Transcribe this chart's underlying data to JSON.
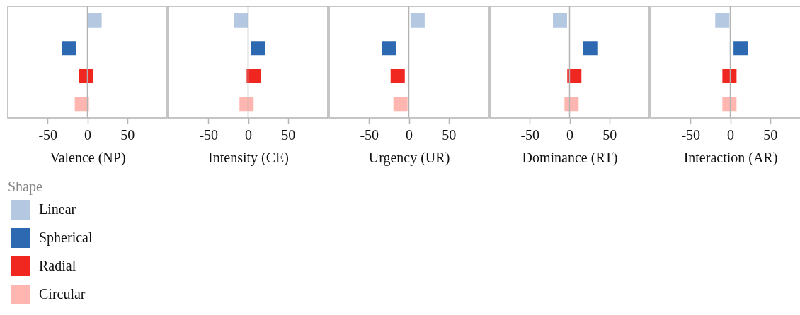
{
  "chart_data": [
    {
      "type": "scatter",
      "orientation": "horizontal",
      "xlabel": "Valence (NP)",
      "legend_title": "Shape",
      "legend": "bottom left",
      "marker": "square",
      "tick_labels": "x",
      "categories": [
        null,
        null,
        null,
        null
      ],
      "xlim": [
        -100,
        100
      ],
      "xticks": [
        -50,
        0,
        50
      ],
      "ref_lines": [
        {
          "axis": "x",
          "value": 0
        }
      ],
      "series": [
        {
          "name": "Linear",
          "color": "#b5c8e2",
          "values": [
            9,
            null,
            null,
            null
          ]
        },
        {
          "name": "Spherical",
          "color": "#2c69b0",
          "values": [
            null,
            -23,
            null,
            null
          ]
        },
        {
          "name": "Radial",
          "color": "#f02720",
          "values": [
            null,
            null,
            -1.5,
            null
          ]
        },
        {
          "name": "Circular",
          "color": "#ffb6b0",
          "values": [
            null,
            null,
            null,
            -7
          ]
        }
      ]
    },
    {
      "type": "scatter",
      "orientation": "horizontal",
      "xlabel": "Intensity (CE)",
      "marker": "square",
      "tick_labels": "x",
      "categories": [
        null,
        null,
        null,
        null
      ],
      "xlim": [
        -100,
        100
      ],
      "xticks": [
        -50,
        0,
        50
      ],
      "ref_lines": [
        {
          "axis": "x",
          "value": 0
        }
      ],
      "series": [
        {
          "color": "#b5c8e2",
          "values": [
            -9,
            null,
            null,
            null
          ]
        },
        {
          "color": "#2c69b0",
          "values": [
            null,
            12.5,
            null,
            null
          ]
        },
        {
          "color": "#f02720",
          "values": [
            null,
            null,
            7,
            null
          ]
        },
        {
          "color": "#ffb6b0",
          "values": [
            null,
            null,
            null,
            -2
          ]
        }
      ]
    },
    {
      "type": "scatter",
      "orientation": "horizontal",
      "xlabel": "Urgency (UR)",
      "marker": "square",
      "tick_labels": "x",
      "categories": [
        null,
        null,
        null,
        null
      ],
      "xlim": [
        -100,
        100
      ],
      "xticks": [
        -50,
        0,
        50
      ],
      "ref_lines": [
        {
          "axis": "x",
          "value": 0
        }
      ],
      "series": [
        {
          "color": "#b5c8e2",
          "values": [
            11,
            null,
            null,
            null
          ]
        },
        {
          "color": "#2c69b0",
          "values": [
            null,
            -25,
            null,
            null
          ]
        },
        {
          "color": "#f02720",
          "values": [
            null,
            null,
            -14,
            null
          ]
        },
        {
          "color": "#ffb6b0",
          "values": [
            null,
            null,
            null,
            -10.5
          ]
        }
      ]
    },
    {
      "type": "scatter",
      "orientation": "horizontal",
      "xlabel": "Dominance (RT)",
      "marker": "square",
      "tick_labels": "x",
      "categories": [
        null,
        null,
        null,
        null
      ],
      "xlim": [
        -100,
        100
      ],
      "xticks": [
        -50,
        0,
        50
      ],
      "ref_lines": [
        {
          "axis": "x",
          "value": 0
        }
      ],
      "series": [
        {
          "color": "#b5c8e2",
          "values": [
            -12,
            null,
            null,
            null
          ]
        },
        {
          "color": "#2c69b0",
          "values": [
            null,
            26,
            null,
            null
          ]
        },
        {
          "color": "#f02720",
          "values": [
            null,
            null,
            6,
            null
          ]
        },
        {
          "color": "#ffb6b0",
          "values": [
            null,
            null,
            null,
            2.5
          ]
        }
      ]
    },
    {
      "type": "scatter",
      "orientation": "horizontal",
      "xlabel": "Interaction (AR)",
      "marker": "square",
      "tick_labels": "x",
      "categories": [
        null,
        null,
        null,
        null
      ],
      "xlim": [
        -100,
        100
      ],
      "xticks": [
        -50,
        0,
        50
      ],
      "ref_lines": [
        {
          "axis": "x",
          "value": 0
        }
      ],
      "series": [
        {
          "color": "#b5c8e2",
          "values": [
            -10,
            null,
            null,
            null
          ]
        },
        {
          "color": "#2c69b0",
          "values": [
            null,
            13,
            null,
            null
          ]
        },
        {
          "color": "#f02720",
          "values": [
            null,
            null,
            -1,
            null
          ]
        },
        {
          "color": "#ffb6b0",
          "values": [
            null,
            null,
            null,
            -1
          ]
        }
      ]
    }
  ]
}
